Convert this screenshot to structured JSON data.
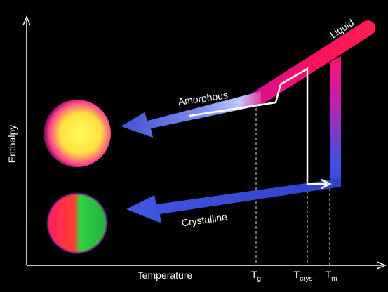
{
  "axes": {
    "y_label": "Enthalpy",
    "x_label": "Temperature"
  },
  "states": {
    "liquid": "Liquid",
    "amorphous": "Amorphous",
    "crystalline": "Crystalline"
  },
  "temperature_marks": [
    {
      "main": "T",
      "sub": "g"
    },
    {
      "main": "T",
      "sub": "crys"
    },
    {
      "main": "T",
      "sub": "m"
    }
  ]
}
